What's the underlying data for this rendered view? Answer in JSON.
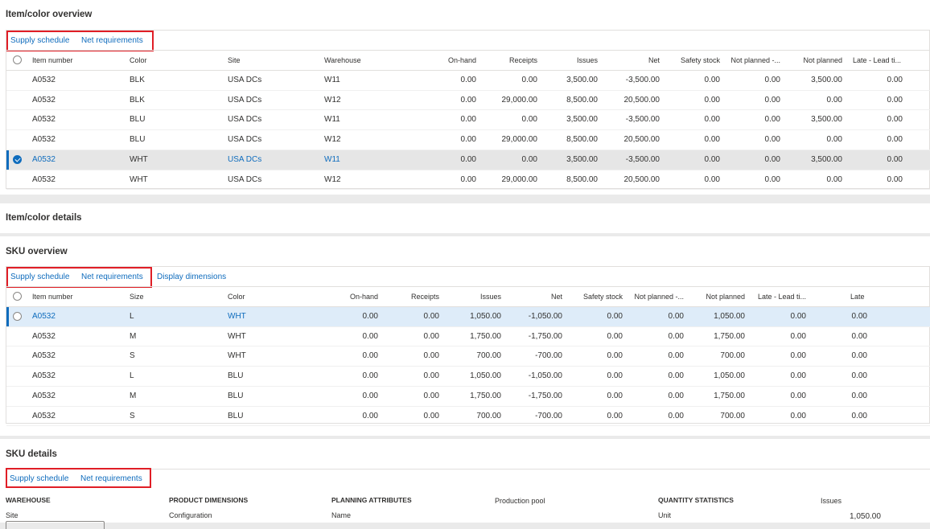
{
  "item_color_overview": {
    "title": "Item/color overview",
    "actions": [
      "Supply schedule",
      "Net requirements"
    ],
    "columns": [
      "Item number",
      "Color",
      "Site",
      "Warehouse",
      "On-hand",
      "Receipts",
      "Issues",
      "Net",
      "Safety stock",
      "Not planned -...",
      "Not planned",
      "Late - Lead ti..."
    ],
    "rows": [
      [
        "A0532",
        "BLK",
        "USA DCs",
        "W11",
        "0.00",
        "0.00",
        "3,500.00",
        "-3,500.00",
        "0.00",
        "0.00",
        "3,500.00",
        "0.00"
      ],
      [
        "A0532",
        "BLK",
        "USA DCs",
        "W12",
        "0.00",
        "29,000.00",
        "8,500.00",
        "20,500.00",
        "0.00",
        "0.00",
        "0.00",
        "0.00"
      ],
      [
        "A0532",
        "BLU",
        "USA DCs",
        "W11",
        "0.00",
        "0.00",
        "3,500.00",
        "-3,500.00",
        "0.00",
        "0.00",
        "3,500.00",
        "0.00"
      ],
      [
        "A0532",
        "BLU",
        "USA DCs",
        "W12",
        "0.00",
        "29,000.00",
        "8,500.00",
        "20,500.00",
        "0.00",
        "0.00",
        "0.00",
        "0.00"
      ],
      [
        "A0532",
        "WHT",
        "USA DCs",
        "W11",
        "0.00",
        "0.00",
        "3,500.00",
        "-3,500.00",
        "0.00",
        "0.00",
        "3,500.00",
        "0.00"
      ],
      [
        "A0532",
        "WHT",
        "USA DCs",
        "W12",
        "0.00",
        "29,000.00",
        "8,500.00",
        "20,500.00",
        "0.00",
        "0.00",
        "0.00",
        "0.00"
      ]
    ],
    "selected_row": 4
  },
  "item_color_details": {
    "title": "Item/color details"
  },
  "sku_overview": {
    "title": "SKU overview",
    "actions": [
      "Supply schedule",
      "Net requirements",
      "Display dimensions"
    ],
    "columns": [
      "Item number",
      "Size",
      "Color",
      "On-hand",
      "Receipts",
      "Issues",
      "Net",
      "Safety stock",
      "Not planned -...",
      "Not planned",
      "Late - Lead ti...",
      "Late"
    ],
    "rows": [
      [
        "A0532",
        "L",
        "WHT",
        "0.00",
        "0.00",
        "1,050.00",
        "-1,050.00",
        "0.00",
        "0.00",
        "1,050.00",
        "0.00",
        "0.00"
      ],
      [
        "A0532",
        "M",
        "WHT",
        "0.00",
        "0.00",
        "1,750.00",
        "-1,750.00",
        "0.00",
        "0.00",
        "1,750.00",
        "0.00",
        "0.00"
      ],
      [
        "A0532",
        "S",
        "WHT",
        "0.00",
        "0.00",
        "700.00",
        "-700.00",
        "0.00",
        "0.00",
        "700.00",
        "0.00",
        "0.00"
      ],
      [
        "A0532",
        "L",
        "BLU",
        "0.00",
        "0.00",
        "1,050.00",
        "-1,050.00",
        "0.00",
        "0.00",
        "1,050.00",
        "0.00",
        "0.00"
      ],
      [
        "A0532",
        "M",
        "BLU",
        "0.00",
        "0.00",
        "1,750.00",
        "-1,750.00",
        "0.00",
        "0.00",
        "1,750.00",
        "0.00",
        "0.00"
      ],
      [
        "A0532",
        "S",
        "BLU",
        "0.00",
        "0.00",
        "700.00",
        "-700.00",
        "0.00",
        "0.00",
        "700.00",
        "0.00",
        "0.00"
      ]
    ],
    "selected_row": 0
  },
  "sku_details": {
    "title": "SKU details",
    "actions": [
      "Supply schedule",
      "Net requirements"
    ],
    "warehouse_label": "WAREHOUSE",
    "site_label": "Site",
    "product_dimensions_label": "PRODUCT DIMENSIONS",
    "configuration_label": "Configuration",
    "planning_attributes_label": "PLANNING ATTRIBUTES",
    "name_label": "Name",
    "production_pool_label": "Production pool",
    "quantity_statistics_label": "QUANTITY STATISTICS",
    "unit_label": "Unit",
    "issues_label": "Issues",
    "issues_value": "1,050.00"
  },
  "colors": {
    "accent": "#0f6cbd",
    "highlight_box": "#e01e26",
    "selected_row": "#e6e6e6",
    "selected_row_blue": "#deecf9"
  }
}
